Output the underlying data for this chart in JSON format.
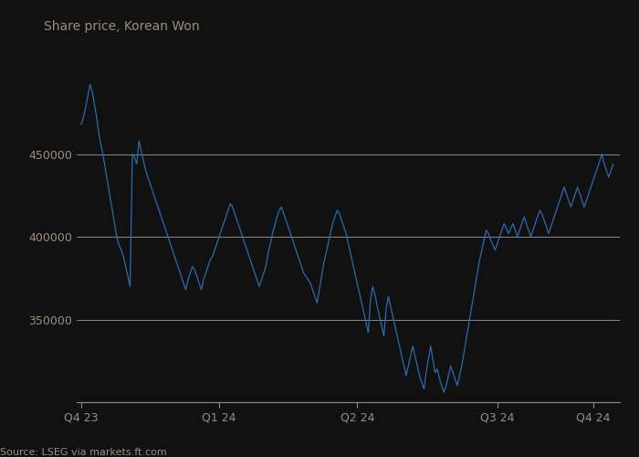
{
  "title": "Share price, Korean Won",
  "source": "Source: LSEG via markets.ft.com",
  "background_color": "#111111",
  "plot_bg_color": "#111111",
  "line_color": "#2b6cb0",
  "text_color": "#9a8f80",
  "grid_color": "#ffffff",
  "yticks": [
    350000,
    400000,
    450000
  ],
  "ylim": [
    300000,
    510000
  ],
  "xtick_labels": [
    "Q4 23",
    "Q1 24",
    "Q2 24",
    "Q3 24",
    "Q4 24"
  ],
  "price_data": [
    468000,
    472000,
    478000,
    485000,
    492000,
    488000,
    480000,
    472000,
    462000,
    455000,
    448000,
    440000,
    432000,
    424000,
    416000,
    408000,
    400000,
    395000,
    392000,
    388000,
    382000,
    376000,
    370000,
    450000,
    448000,
    444000,
    458000,
    452000,
    446000,
    440000,
    436000,
    432000,
    428000,
    424000,
    420000,
    416000,
    412000,
    408000,
    404000,
    400000,
    396000,
    392000,
    388000,
    384000,
    380000,
    376000,
    372000,
    368000,
    374000,
    378000,
    382000,
    380000,
    376000,
    372000,
    368000,
    374000,
    378000,
    382000,
    386000,
    388000,
    392000,
    396000,
    400000,
    404000,
    408000,
    412000,
    416000,
    420000,
    418000,
    414000,
    410000,
    406000,
    402000,
    398000,
    394000,
    390000,
    386000,
    382000,
    378000,
    374000,
    370000,
    374000,
    378000,
    382000,
    390000,
    396000,
    402000,
    407000,
    412000,
    416000,
    418000,
    414000,
    410000,
    406000,
    402000,
    398000,
    394000,
    390000,
    386000,
    382000,
    378000,
    376000,
    374000,
    372000,
    368000,
    364000,
    360000,
    368000,
    376000,
    384000,
    390000,
    396000,
    402000,
    408000,
    412000,
    416000,
    414000,
    410000,
    406000,
    402000,
    396000,
    390000,
    384000,
    378000,
    372000,
    366000,
    360000,
    354000,
    348000,
    342000,
    362000,
    370000,
    365000,
    358000,
    352000,
    346000,
    340000,
    356000,
    364000,
    358000,
    352000,
    346000,
    340000,
    334000,
    328000,
    322000,
    316000,
    322000,
    328000,
    334000,
    328000,
    322000,
    316000,
    312000,
    308000,
    318000,
    326000,
    334000,
    326000,
    318000,
    320000,
    314000,
    310000,
    306000,
    310000,
    316000,
    322000,
    318000,
    314000,
    310000,
    316000,
    322000,
    330000,
    338000,
    346000,
    354000,
    362000,
    370000,
    378000,
    386000,
    392000,
    398000,
    404000,
    402000,
    398000,
    395000,
    392000,
    396000,
    400000,
    404000,
    408000,
    405000,
    402000,
    405000,
    408000,
    404000,
    400000,
    404000,
    408000,
    412000,
    408000,
    404000,
    400000,
    404000,
    408000,
    412000,
    416000,
    414000,
    410000,
    406000,
    402000,
    406000,
    410000,
    414000,
    418000,
    422000,
    426000,
    430000,
    426000,
    422000,
    418000,
    422000,
    426000,
    430000,
    426000,
    422000,
    418000,
    422000,
    426000,
    430000,
    434000,
    438000,
    442000,
    446000,
    450000,
    444000,
    440000,
    436000,
    440000,
    444000
  ]
}
